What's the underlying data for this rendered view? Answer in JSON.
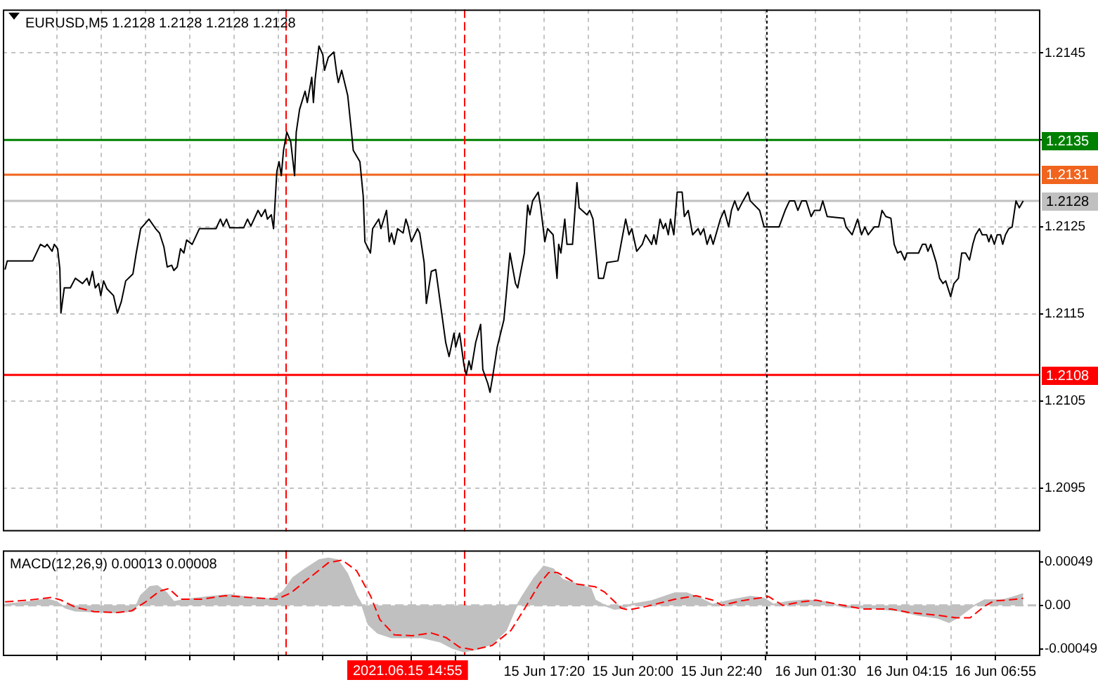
{
  "chart_data": [
    {
      "type": "line",
      "title": "EURUSD,M5 1.2128 1.2128 1.2128 1.2128",
      "marker": "none",
      "grid": true,
      "tick_labels": "y",
      "xlim": [
        "2021-06-15T01:02",
        "2021-06-16T08:16"
      ],
      "ylim": [
        1.209,
        1.215
      ],
      "xticks": [
        {
          "value": "2021-06-15T02:40",
          "label": null
        },
        {
          "value": "2021-06-15T04:00",
          "label": null
        },
        {
          "value": "2021-06-15T05:20",
          "label": null
        },
        {
          "value": "2021-06-15T06:40",
          "label": null
        },
        {
          "value": "2021-06-15T08:00",
          "label": null
        },
        {
          "value": "2021-06-15T09:20",
          "label": null
        },
        {
          "value": "2021-06-15T10:40",
          "label": null
        },
        {
          "value": "2021-06-15T12:00",
          "label": null
        },
        {
          "value": "2021-06-15T13:20",
          "label": null
        },
        {
          "value": "2021-06-15T14:40",
          "label": null
        },
        {
          "value": "2021-06-15T16:00",
          "label": null
        },
        {
          "value": "2021-06-15T17:20",
          "label": null
        },
        {
          "value": "2021-06-15T18:40",
          "label": null
        },
        {
          "value": "2021-06-15T20:00",
          "label": null
        },
        {
          "value": "2021-06-15T21:20",
          "label": null
        },
        {
          "value": "2021-06-15T22:40",
          "label": null
        },
        {
          "value": "2021-06-16T00:00",
          "label": null
        },
        {
          "value": "2021-06-16T01:30",
          "label": null
        },
        {
          "value": "2021-06-16T02:50",
          "label": null
        },
        {
          "value": "2021-06-16T04:15",
          "label": null
        },
        {
          "value": "2021-06-16T05:35",
          "label": null
        },
        {
          "value": "2021-06-16T06:55",
          "label": null
        }
      ],
      "yticks": [
        1.2095,
        1.2105,
        1.2115,
        1.2125,
        {
          "value": 1.2135,
          "label": null
        },
        1.2145
      ],
      "ref_lines": [
        {
          "axis": "y",
          "value": 1.2135,
          "label": "1.2135",
          "color": "#008000"
        },
        {
          "axis": "y",
          "value": 1.2131,
          "label": "1.2131",
          "color": "#f0641e"
        },
        {
          "axis": "y",
          "value": 1.2128,
          "label": "1.2128",
          "color": "#c0c0c0"
        },
        {
          "axis": "y",
          "value": 1.2108,
          "label": "1.2108",
          "color": "#ff0000"
        },
        {
          "axis": "x",
          "value": "2021-06-15T09:33",
          "color": "#ff0000",
          "line_style": "dashed"
        },
        {
          "axis": "x",
          "value": "2021-06-15T14:55",
          "color": "#ff0000",
          "line_style": "dashed"
        },
        {
          "axis": "x",
          "value": "2021-06-16T00:00",
          "color": "#000000",
          "line_style": "dotted"
        }
      ],
      "series": [
        {
          "color": "#000000",
          "x": [
            "2021-06-15T01:06",
            "2021-06-15T01:10",
            "2021-06-15T01:56",
            "2021-06-15T02:10",
            "2021-06-15T02:18",
            "2021-06-15T02:22",
            "2021-06-15T02:31",
            "2021-06-15T02:35",
            "2021-06-15T02:41",
            "2021-06-15T02:45",
            "2021-06-15T02:47",
            "2021-06-15T02:53",
            "2021-06-15T03:04",
            "2021-06-15T03:13",
            "2021-06-15T03:26",
            "2021-06-15T03:34",
            "2021-06-15T03:38",
            "2021-06-15T03:44",
            "2021-06-15T03:49",
            "2021-06-15T03:55",
            "2021-06-15T03:59",
            "2021-06-15T04:04",
            "2021-06-15T04:10",
            "2021-06-15T04:22",
            "2021-06-15T04:29",
            "2021-06-15T04:36",
            "2021-06-15T04:44",
            "2021-06-15T04:57",
            "2021-06-15T05:03",
            "2021-06-15T05:11",
            "2021-06-15T05:26",
            "2021-06-15T05:38",
            "2021-06-15T05:45",
            "2021-06-15T05:53",
            "2021-06-15T05:59",
            "2021-06-15T06:07",
            "2021-06-15T06:11",
            "2021-06-15T06:17",
            "2021-06-15T06:23",
            "2021-06-15T06:29",
            "2021-06-15T06:34",
            "2021-06-15T06:44",
            "2021-06-15T06:57",
            "2021-06-15T07:27",
            "2021-06-15T07:35",
            "2021-06-15T07:40",
            "2021-06-15T07:46",
            "2021-06-15T07:52",
            "2021-06-15T08:17",
            "2021-06-15T08:24",
            "2021-06-15T08:30",
            "2021-06-15T08:43",
            "2021-06-15T08:49",
            "2021-06-15T08:56",
            "2021-06-15T09:00",
            "2021-06-15T09:07",
            "2021-06-15T09:11",
            "2021-06-15T09:17",
            "2021-06-15T09:21",
            "2021-06-15T09:25",
            "2021-06-15T09:29",
            "2021-06-15T09:35",
            "2021-06-15T09:42",
            "2021-06-15T09:49",
            "2021-06-15T09:52",
            "2021-06-15T09:58",
            "2021-06-15T10:08",
            "2021-06-15T10:12",
            "2021-06-15T10:20",
            "2021-06-15T10:23",
            "2021-06-15T10:26",
            "2021-06-15T10:33",
            "2021-06-15T10:40",
            "2021-06-15T10:43",
            "2021-06-15T10:50",
            "2021-06-15T11:00",
            "2021-06-15T11:05",
            "2021-06-15T11:08",
            "2021-06-15T11:14",
            "2021-06-15T11:25",
            "2021-06-15T11:31",
            "2021-06-15T11:35",
            "2021-06-15T11:47",
            "2021-06-15T11:53",
            "2021-06-15T11:56",
            "2021-06-15T12:06",
            "2021-06-15T12:10",
            "2021-06-15T12:21",
            "2021-06-15T12:25",
            "2021-06-15T12:35",
            "2021-06-15T12:40",
            "2021-06-15T12:44",
            "2021-06-15T12:49",
            "2021-06-15T12:55",
            "2021-06-15T13:05",
            "2021-06-15T13:10",
            "2021-06-15T13:14",
            "2021-06-15T13:20",
            "2021-06-15T13:31",
            "2021-06-15T13:35",
            "2021-06-15T13:43",
            "2021-06-15T13:47",
            "2021-06-15T13:56",
            "2021-06-15T14:04",
            "2021-06-15T14:13",
            "2021-06-15T14:22",
            "2021-06-15T14:28",
            "2021-06-15T14:37",
            "2021-06-15T14:40",
            "2021-06-15T14:47",
            "2021-06-15T14:55",
            "2021-06-15T14:59",
            "2021-06-15T15:04",
            "2021-06-15T15:08",
            "2021-06-15T15:16",
            "2021-06-15T15:25",
            "2021-06-15T15:29",
            "2021-06-15T15:38",
            "2021-06-15T15:42",
            "2021-06-15T15:46",
            "2021-06-15T15:55",
            "2021-06-15T16:07",
            "2021-06-15T16:11",
            "2021-06-15T16:18",
            "2021-06-15T16:28",
            "2021-06-15T16:32",
            "2021-06-15T16:44",
            "2021-06-15T16:50",
            "2021-06-15T16:54",
            "2021-06-15T16:59",
            "2021-06-15T17:09",
            "2021-06-15T17:13",
            "2021-06-15T17:21",
            "2021-06-15T17:26",
            "2021-06-15T17:36",
            "2021-06-15T17:43",
            "2021-06-15T17:46",
            "2021-06-15T17:50",
            "2021-06-15T17:57",
            "2021-06-15T18:01",
            "2021-06-15T18:11",
            "2021-06-15T18:19",
            "2021-06-15T18:23",
            "2021-06-15T18:37",
            "2021-06-15T18:42",
            "2021-06-15T18:48",
            "2021-06-15T18:58",
            "2021-06-15T19:07",
            "2021-06-15T19:13",
            "2021-06-15T19:33",
            "2021-06-15T19:47",
            "2021-06-15T19:53",
            "2021-06-15T19:58",
            "2021-06-15T20:07",
            "2021-06-15T20:17",
            "2021-06-15T20:23",
            "2021-06-15T20:34",
            "2021-06-15T20:38",
            "2021-06-15T20:42",
            "2021-06-15T20:49",
            "2021-06-15T20:55",
            "2021-06-15T20:59",
            "2021-06-15T21:04",
            "2021-06-15T21:08",
            "2021-06-15T21:14",
            "2021-06-15T21:20",
            "2021-06-15T21:29",
            "2021-06-15T21:33",
            "2021-06-15T21:40",
            "2021-06-15T21:48",
            "2021-06-15T21:58",
            "2021-06-15T22:02",
            "2021-06-15T22:08",
            "2021-06-15T22:14",
            "2021-06-15T22:20",
            "2021-06-15T22:25",
            "2021-06-15T22:38",
            "2021-06-15T22:45",
            "2021-06-15T22:53",
            "2021-06-15T22:58",
            "2021-06-15T23:04",
            "2021-06-15T23:10",
            "2021-06-15T23:19",
            "2021-06-15T23:28",
            "2021-06-15T23:32",
            "2021-06-15T23:49",
            "2021-06-15T23:57",
            "2021-06-16T00:24",
            "2021-06-16T00:35",
            "2021-06-16T00:43",
            "2021-06-16T00:52",
            "2021-06-16T00:58",
            "2021-06-16T01:05",
            "2021-06-16T01:13",
            "2021-06-16T01:22",
            "2021-06-16T01:28",
            "2021-06-16T01:38",
            "2021-06-16T01:43",
            "2021-06-16T01:51",
            "2021-06-16T02:21",
            "2021-06-16T02:25",
            "2021-06-16T02:36",
            "2021-06-16T02:46",
            "2021-06-16T02:53",
            "2021-06-16T02:59",
            "2021-06-16T03:05",
            "2021-06-16T03:16",
            "2021-06-16T03:24",
            "2021-06-16T03:30",
            "2021-06-16T03:37",
            "2021-06-16T03:46",
            "2021-06-16T03:52",
            "2021-06-16T03:58",
            "2021-06-16T04:04",
            "2021-06-16T04:11",
            "2021-06-16T04:15",
            "2021-06-16T04:36",
            "2021-06-16T04:43",
            "2021-06-16T04:49",
            "2021-06-16T04:53",
            "2021-06-16T04:58",
            "2021-06-16T05:08",
            "2021-06-16T05:14",
            "2021-06-16T05:20",
            "2021-06-16T05:25",
            "2021-06-16T05:34",
            "2021-06-16T05:40",
            "2021-06-16T05:48",
            "2021-06-16T05:54",
            "2021-06-16T06:01",
            "2021-06-16T06:08",
            "2021-06-16T06:14",
            "2021-06-16T06:19",
            "2021-06-16T06:26",
            "2021-06-16T06:31",
            "2021-06-16T06:39",
            "2021-06-16T06:43",
            "2021-06-16T06:47",
            "2021-06-16T06:53",
            "2021-06-16T06:58",
            "2021-06-16T07:04",
            "2021-06-16T07:08",
            "2021-06-16T07:13",
            "2021-06-16T07:19",
            "2021-06-16T07:25",
            "2021-06-16T07:32",
            "2021-06-16T07:38",
            "2021-06-16T07:45"
          ],
          "values": [
            1.21201,
            1.21211,
            1.21211,
            1.2123,
            1.21227,
            1.2123,
            1.21222,
            1.2123,
            1.21225,
            1.21202,
            1.21151,
            1.2118,
            1.2118,
            1.21191,
            1.21185,
            1.21191,
            1.21183,
            1.21199,
            1.2118,
            1.21185,
            1.21171,
            1.21188,
            1.21179,
            1.21171,
            1.21151,
            1.21164,
            1.21188,
            1.21196,
            1.2122,
            1.21248,
            1.21259,
            1.21248,
            1.21243,
            1.21227,
            1.21204,
            1.21206,
            1.212,
            1.21204,
            1.21225,
            1.2122,
            1.21235,
            1.2123,
            1.21248,
            1.21248,
            1.21259,
            1.21251,
            1.21259,
            1.21249,
            1.21249,
            1.21259,
            1.21251,
            1.21269,
            1.21262,
            1.2127,
            1.21259,
            1.21264,
            1.21248,
            1.21314,
            1.21325,
            1.21309,
            1.21338,
            1.21359,
            1.21348,
            1.21309,
            1.21359,
            1.21385,
            1.21406,
            1.21393,
            1.21422,
            1.21393,
            1.21419,
            1.21458,
            1.21448,
            1.2143,
            1.21445,
            1.21451,
            1.21427,
            1.21416,
            1.2143,
            1.21401,
            1.21364,
            1.21338,
            1.21325,
            1.21285,
            1.21233,
            1.2122,
            1.21248,
            1.21259,
            1.21248,
            1.21269,
            1.21233,
            1.21243,
            1.2123,
            1.21248,
            1.21243,
            1.21259,
            1.21251,
            1.21233,
            1.21248,
            1.21243,
            1.21209,
            1.21162,
            1.21199,
            1.21201,
            1.21159,
            1.21117,
            1.21101,
            1.21128,
            1.21112,
            1.21128,
            1.21091,
            1.2108,
            1.21096,
            1.21086,
            1.21117,
            1.21138,
            1.21086,
            1.2107,
            1.2106,
            1.21075,
            1.21112,
            1.21143,
            1.2117,
            1.2122,
            1.21185,
            1.2118,
            1.2122,
            1.21275,
            1.21264,
            1.2128,
            1.2129,
            1.21275,
            1.21233,
            1.21248,
            1.21241,
            1.21191,
            1.2123,
            1.2122,
            1.21259,
            1.2123,
            1.2123,
            1.21301,
            1.21272,
            1.21264,
            1.21269,
            1.21259,
            1.21191,
            1.21191,
            1.21209,
            1.21211,
            1.21259,
            1.21241,
            1.21248,
            1.21222,
            1.2123,
            1.21241,
            1.2123,
            1.21241,
            1.2123,
            1.21259,
            1.21248,
            1.21254,
            1.21241,
            1.21259,
            1.21241,
            1.2129,
            1.2129,
            1.21262,
            1.21269,
            1.21241,
            1.21248,
            1.21241,
            1.21248,
            1.2123,
            1.21241,
            1.2123,
            1.21259,
            1.21269,
            1.2125,
            1.21269,
            1.2128,
            1.21269,
            1.2128,
            1.2129,
            1.2128,
            1.21269,
            1.2125,
            1.2125,
            1.21269,
            1.2128,
            1.2128,
            1.21269,
            1.2128,
            1.2128,
            1.21262,
            1.21269,
            1.21269,
            1.2128,
            1.21262,
            1.2126,
            1.2125,
            1.21241,
            1.21259,
            1.21241,
            1.2125,
            1.21241,
            1.2125,
            1.2125,
            1.21269,
            1.21262,
            1.2126,
            1.2123,
            1.2122,
            1.21222,
            1.21212,
            1.2122,
            1.2122,
            1.2123,
            1.2123,
            1.21222,
            1.2123,
            1.21209,
            1.21191,
            1.21185,
            1.21188,
            1.2117,
            1.21185,
            1.21191,
            1.2122,
            1.2122,
            1.21212,
            1.2123,
            1.21241,
            1.21248,
            1.21241,
            1.21241,
            1.21233,
            1.21241,
            1.2123,
            1.21241,
            1.21241,
            1.2123,
            1.21241,
            1.21248,
            1.2125,
            1.2128,
            1.21272,
            1.2128
          ]
        }
      ]
    },
    {
      "type": "area",
      "title": "MACD(12,26,9) 0.00013 0.00008",
      "marker": "none",
      "grid": "x",
      "xlim": [
        "2021-06-15T01:02",
        "2021-06-16T08:16"
      ],
      "ylim": [
        -0.00057,
        0.00062
      ],
      "xticks": [
        {
          "value": "2021-06-15T02:40",
          "label": null
        },
        {
          "value": "2021-06-15T04:00",
          "label": null
        },
        {
          "value": "2021-06-15T05:20",
          "label": null
        },
        {
          "value": "2021-06-15T06:40",
          "label": null
        },
        {
          "value": "2021-06-15T08:00",
          "label": null
        },
        {
          "value": "2021-06-15T09:20",
          "label": null
        },
        {
          "value": "2021-06-15T10:40",
          "label": null
        },
        {
          "value": "2021-06-15T12:00",
          "label": null
        },
        {
          "value": "2021-06-15T13:20",
          "label": null
        },
        {
          "value": "2021-06-15T14:40",
          "label": null
        },
        {
          "value": "2021-06-15T16:00",
          "label": null
        },
        {
          "value": "2021-06-15T17:20",
          "label": "15 Jun 17:20"
        },
        {
          "value": "2021-06-15T18:40",
          "label": null
        },
        {
          "value": "2021-06-15T20:00",
          "label": "15 Jun 20:00"
        },
        {
          "value": "2021-06-15T21:20",
          "label": null
        },
        {
          "value": "2021-06-15T22:40",
          "label": "15 Jun 22:40"
        },
        {
          "value": "2021-06-16T00:00",
          "label": null
        },
        {
          "value": "2021-06-16T01:30",
          "label": "16 Jun 01:30"
        },
        {
          "value": "2021-06-16T02:50",
          "label": null
        },
        {
          "value": "2021-06-16T04:15",
          "label": "16 Jun 04:15"
        },
        {
          "value": "2021-06-16T05:35",
          "label": null
        },
        {
          "value": "2021-06-16T06:55",
          "label": "16 Jun 06:55"
        }
      ],
      "yticks": [
        -0.00049,
        {
          "value": 0,
          "label": "0.00"
        },
        0.00049
      ],
      "ref_lines": [
        {
          "axis": "y",
          "value": 0,
          "color": "#c0c0c0",
          "line_style": "dashed"
        },
        {
          "axis": "x",
          "value": "2021-06-15T09:33",
          "color": "#ff0000",
          "line_style": "dashed"
        },
        {
          "axis": "x",
          "value": "2021-06-15T14:55",
          "color": "#ff0000",
          "line_style": "dashed",
          "label": "2021.06.15 14:55"
        },
        {
          "axis": "x",
          "value": "2021-06-16T00:00",
          "color": "#000000",
          "line_style": "dotted"
        }
      ],
      "series": [
        {
          "color": "#c0c0c0",
          "x": [
            "2021-06-15T01:06",
            "2021-06-15T01:48",
            "2021-06-15T02:22",
            "2021-06-15T02:39",
            "2021-06-15T02:56",
            "2021-06-15T03:13",
            "2021-06-15T03:47",
            "2021-06-15T04:29",
            "2021-06-15T04:59",
            "2021-06-15T05:11",
            "2021-06-15T05:28",
            "2021-06-15T05:41",
            "2021-06-15T05:58",
            "2021-06-15T06:11",
            "2021-06-15T06:36",
            "2021-06-15T07:18",
            "2021-06-15T07:52",
            "2021-06-15T08:26",
            "2021-06-15T09:08",
            "2021-06-15T09:29",
            "2021-06-15T09:46",
            "2021-06-15T10:08",
            "2021-06-15T10:33",
            "2021-06-15T10:50",
            "2021-06-15T11:07",
            "2021-06-15T11:24",
            "2021-06-15T11:41",
            "2021-06-15T11:51",
            "2021-06-15T12:02",
            "2021-06-15T12:19",
            "2021-06-15T12:44",
            "2021-06-15T13:39",
            "2021-06-15T14:13",
            "2021-06-15T14:34",
            "2021-06-15T14:55",
            "2021-06-15T15:20",
            "2021-06-15T15:46",
            "2021-06-15T16:11",
            "2021-06-15T16:28",
            "2021-06-15T16:41",
            "2021-06-15T17:02",
            "2021-06-15T17:19",
            "2021-06-15T17:36",
            "2021-06-15T17:53",
            "2021-06-15T18:19",
            "2021-06-15T18:44",
            "2021-06-15T18:52",
            "2021-06-15T19:09",
            "2021-06-15T19:26",
            "2021-06-15T19:43",
            "2021-06-15T19:56",
            "2021-06-15T20:34",
            "2021-06-15T21:16",
            "2021-06-15T21:37",
            "2021-06-15T21:58",
            "2021-06-15T22:24",
            "2021-06-15T22:58",
            "2021-06-15T23:32",
            "2021-06-15T23:57",
            "2021-06-16T00:14",
            "2021-06-16T00:39",
            "2021-06-16T01:13",
            "2021-06-16T01:47",
            "2021-06-16T02:21",
            "2021-06-16T03:11",
            "2021-06-16T04:02",
            "2021-06-16T04:36",
            "2021-06-16T05:10",
            "2021-06-16T05:31",
            "2021-06-16T05:48",
            "2021-06-16T06:14",
            "2021-06-16T06:35",
            "2021-06-16T07:08",
            "2021-06-16T07:25",
            "2021-06-16T07:45"
          ],
          "values": [
            1e-05,
            4e-05,
            7e-05,
            4e-05,
            -3e-05,
            -6e-05,
            -7e-05,
            -8e-05,
            -6e-05,
            0.00011,
            0.00021,
            0.00022,
            0.00014,
            4e-05,
            7e-05,
            0.0001,
            0.00012,
            9e-05,
            7e-05,
            0.00016,
            0.00031,
            0.00041,
            0.00051,
            0.00053,
            0.00051,
            0.00036,
            0.00011,
            0,
            -0.00021,
            -0.00031,
            -0.00036,
            -0.00036,
            -0.00041,
            -0.00048,
            -0.00052,
            -0.00049,
            -0.00043,
            -0.00028,
            -3e-05,
            0.00011,
            0.00031,
            0.00044,
            0.00041,
            0.00029,
            0.00024,
            0.00019,
            6e-05,
            0,
            -4e-05,
            -3e-05,
            1e-05,
            5e-05,
            0.00014,
            0.00014,
            9e-05,
            1e-05,
            6e-05,
            0.0001,
            8e-05,
            1e-05,
            4e-05,
            6e-05,
            4e-05,
            -2e-05,
            -3e-05,
            -6e-05,
            -0.00011,
            -0.00014,
            -0.00019,
            -0.00013,
            -1e-05,
            6e-05,
            6e-05,
            9e-05,
            0.00013
          ]
        },
        {
          "type": "line",
          "color": "#ff0000",
          "line_style": "dashed",
          "x": [
            "2021-06-15T01:06",
            "2021-06-15T01:48",
            "2021-06-15T02:31",
            "2021-06-15T02:47",
            "2021-06-15T03:13",
            "2021-06-15T03:47",
            "2021-06-15T04:29",
            "2021-06-15T04:55",
            "2021-06-15T05:20",
            "2021-06-15T05:45",
            "2021-06-15T06:02",
            "2021-06-15T06:23",
            "2021-06-15T07:01",
            "2021-06-15T07:44",
            "2021-06-15T08:26",
            "2021-06-15T09:17",
            "2021-06-15T09:42",
            "2021-06-15T10:16",
            "2021-06-15T10:50",
            "2021-06-15T11:15",
            "2021-06-15T11:41",
            "2021-06-15T12:06",
            "2021-06-15T12:23",
            "2021-06-15T12:49",
            "2021-06-15T13:22",
            "2021-06-15T13:56",
            "2021-06-15T14:22",
            "2021-06-15T14:47",
            "2021-06-15T15:12",
            "2021-06-15T15:46",
            "2021-06-15T16:20",
            "2021-06-15T16:45",
            "2021-06-15T17:11",
            "2021-06-15T17:28",
            "2021-06-15T17:44",
            "2021-06-15T18:19",
            "2021-06-15T18:52",
            "2021-06-15T19:09",
            "2021-06-15T19:39",
            "2021-06-15T19:52",
            "2021-06-15T20:25",
            "2021-06-15T21:16",
            "2021-06-15T21:54",
            "2021-06-15T22:24",
            "2021-06-15T22:41",
            "2021-06-15T23:14",
            "2021-06-16T00:05",
            "2021-06-16T00:31",
            "2021-06-16T01:05",
            "2021-06-16T01:30",
            "2021-06-16T02:04",
            "2021-06-16T02:55",
            "2021-06-16T03:46",
            "2021-06-16T04:19",
            "2021-06-16T05:10",
            "2021-06-16T05:44",
            "2021-06-16T06:09",
            "2021-06-16T06:35",
            "2021-06-16T06:52",
            "2021-06-16T07:17",
            "2021-06-16T07:45"
          ],
          "values": [
            4e-05,
            6e-05,
            9e-05,
            6e-05,
            -2e-05,
            -7e-05,
            -8e-05,
            -6e-05,
            4e-05,
            0.00016,
            0.00019,
            7e-05,
            7e-05,
            0.00011,
            9e-05,
            7e-05,
            0.00014,
            0.00031,
            0.00048,
            0.00051,
            0.00039,
            0.00011,
            -0.00016,
            -0.00033,
            -0.00034,
            -0.00031,
            -0.00036,
            -0.00047,
            -0.0005,
            -0.00045,
            -0.00028,
            -3e-05,
            0.00024,
            0.00037,
            0.00037,
            0.00024,
            0.00021,
            0.00015,
            -3e-05,
            -5e-05,
            -1e-05,
            7e-05,
            0.00011,
            6e-05,
            0,
            5e-05,
            0.0001,
            0,
            4e-05,
            6e-05,
            2e-05,
            -4e-05,
            -4e-05,
            -8e-05,
            -0.00011,
            -0.00014,
            -0.00014,
            -1e-05,
            5e-05,
            6e-05,
            8e-05
          ]
        }
      ]
    }
  ]
}
